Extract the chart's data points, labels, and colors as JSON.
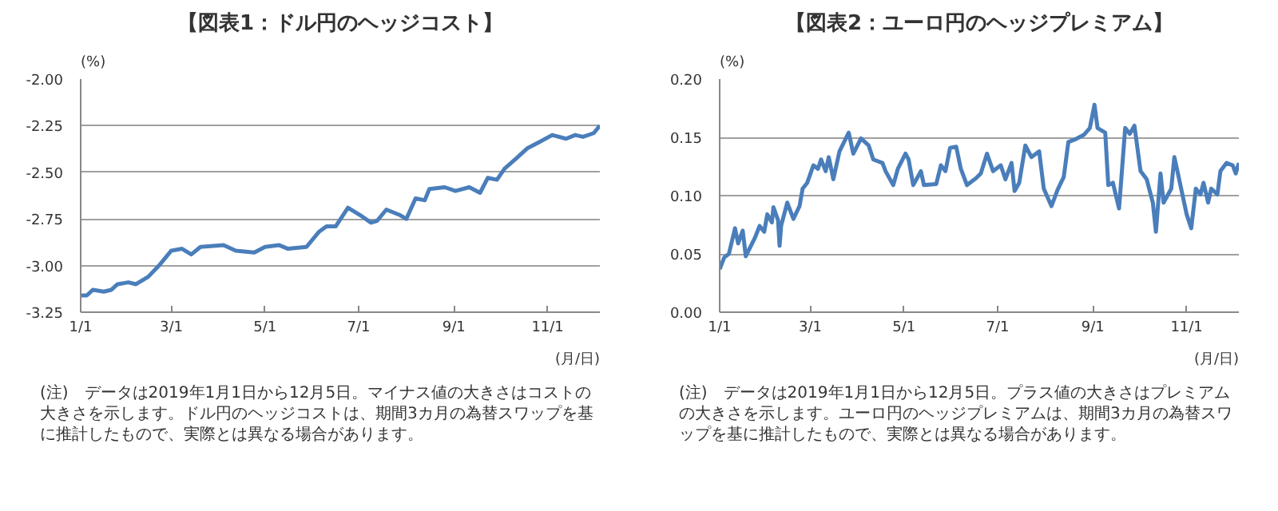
{
  "chart_data": [
    {
      "type": "line",
      "title": "【図表1：ドル円のヘッジコスト】",
      "ylabel": "(%)",
      "xlabel": "(月/日)",
      "x": [
        "2019-01-01",
        "2019-01-05",
        "2019-01-09",
        "2019-01-16",
        "2019-01-21",
        "2019-01-25",
        "2019-02-01",
        "2019-02-06",
        "2019-02-14",
        "2019-02-21",
        "2019-03-01",
        "2019-03-08",
        "2019-03-14",
        "2019-03-20",
        "2019-04-04",
        "2019-04-12",
        "2019-04-24",
        "2019-05-01",
        "2019-05-10",
        "2019-05-16",
        "2019-05-28",
        "2019-06-05",
        "2019-06-10",
        "2019-06-16",
        "2019-06-24",
        "2019-07-02",
        "2019-07-09",
        "2019-07-13",
        "2019-07-19",
        "2019-07-28",
        "2019-08-01",
        "2019-08-07",
        "2019-08-13",
        "2019-08-16",
        "2019-08-26",
        "2019-09-02",
        "2019-09-11",
        "2019-09-18",
        "2019-09-23",
        "2019-09-29",
        "2019-10-04",
        "2019-10-11",
        "2019-10-19",
        "2019-10-26",
        "2019-11-04",
        "2019-11-13",
        "2019-11-19",
        "2019-11-24",
        "2019-12-01",
        "2019-12-05"
      ],
      "series": [
        {
          "color": "#4a7ebb",
          "values": [
            -3.16,
            -3.16,
            -3.13,
            -3.14,
            -3.13,
            -3.1,
            -3.09,
            -3.1,
            -3.06,
            -3.0,
            -2.92,
            -2.91,
            -2.94,
            -2.9,
            -2.89,
            -2.92,
            -2.93,
            -2.9,
            -2.89,
            -2.91,
            -2.9,
            -2.82,
            -2.79,
            -2.79,
            -2.69,
            -2.73,
            -2.77,
            -2.76,
            -2.7,
            -2.73,
            -2.75,
            -2.64,
            -2.65,
            -2.59,
            -2.58,
            -2.6,
            -2.58,
            -2.61,
            -2.53,
            -2.54,
            -2.48,
            -2.43,
            -2.37,
            -2.34,
            -2.3,
            -2.32,
            -2.3,
            -2.31,
            -2.29,
            -2.25
          ]
        }
      ],
      "xlim": [
        "2019-01-01",
        "2019-12-05"
      ],
      "xticks": [
        {
          "value": "2019-01-01",
          "label": "1/1"
        },
        {
          "value": "2019-03-01",
          "label": "3/1"
        },
        {
          "value": "2019-05-01",
          "label": "5/1"
        },
        {
          "value": "2019-07-01",
          "label": "7/1"
        },
        {
          "value": "2019-09-01",
          "label": "9/1"
        },
        {
          "value": "2019-11-01",
          "label": "11/1"
        }
      ],
      "ylim": [
        -3.25,
        -2.0
      ],
      "yticks": [
        {
          "value": -3.25,
          "label": "-3.25"
        },
        {
          "value": -3.0,
          "label": "-3.00"
        },
        {
          "value": -2.75,
          "label": "-2.75"
        },
        {
          "value": -2.5,
          "label": "-2.50"
        },
        {
          "value": -2.25,
          "label": "-2.25"
        },
        {
          "value": -2.0,
          "label": "-2.00"
        }
      ],
      "grid": "y",
      "marker": "none",
      "line_style": "solid",
      "annotations": [
        "(注)　データは2019年1月1日から12月5日。マイナス値の大きさはコストの大きさを示します。ドル円のヘッジコストは、期間3カ月の為替スワップを基に推計したもので、実際とは異なる場合があります。"
      ]
    },
    {
      "type": "line",
      "title": "【図表2：ユーロ円のヘッジプレミアム】",
      "ylabel": "(%)",
      "xlabel": "(月/日)",
      "x": [
        "2019-01-01",
        "2019-01-04",
        "2019-01-07",
        "2019-01-11",
        "2019-01-13",
        "2019-01-16",
        "2019-01-18",
        "2019-01-24",
        "2019-01-27",
        "2019-01-30",
        "2019-02-01",
        "2019-02-04",
        "2019-02-05",
        "2019-02-08",
        "2019-02-09",
        "2019-02-10",
        "2019-02-14",
        "2019-02-18",
        "2019-02-22",
        "2019-02-24",
        "2019-02-27",
        "2019-03-03",
        "2019-03-06",
        "2019-03-08",
        "2019-03-11",
        "2019-03-13",
        "2019-03-16",
        "2019-03-20",
        "2019-03-26",
        "2019-03-29",
        "2019-04-03",
        "2019-04-08",
        "2019-04-11",
        "2019-04-17",
        "2019-04-19",
        "2019-04-24",
        "2019-04-27",
        "2019-05-02",
        "2019-05-04",
        "2019-05-07",
        "2019-05-12",
        "2019-05-14",
        "2019-05-22",
        "2019-05-25",
        "2019-05-28",
        "2019-05-31",
        "2019-06-04",
        "2019-06-07",
        "2019-06-11",
        "2019-06-17",
        "2019-06-20",
        "2019-06-24",
        "2019-06-28",
        "2019-07-03",
        "2019-07-06",
        "2019-07-10",
        "2019-07-12",
        "2019-07-15",
        "2019-07-19",
        "2019-07-23",
        "2019-07-28",
        "2019-07-31",
        "2019-08-05",
        "2019-08-09",
        "2019-08-13",
        "2019-08-16",
        "2019-08-20",
        "2019-08-26",
        "2019-08-30",
        "2019-09-02",
        "2019-09-04",
        "2019-09-09",
        "2019-09-11",
        "2019-09-14",
        "2019-09-18",
        "2019-09-22",
        "2019-09-25",
        "2019-09-28",
        "2019-10-02",
        "2019-10-06",
        "2019-10-10",
        "2019-10-12",
        "2019-10-15",
        "2019-10-17",
        "2019-10-22",
        "2019-10-24",
        "2019-10-26",
        "2019-11-01",
        "2019-11-04",
        "2019-11-07",
        "2019-11-10",
        "2019-11-12",
        "2019-11-15",
        "2019-11-17",
        "2019-11-21",
        "2019-11-23",
        "2019-11-27",
        "2019-12-01",
        "2019-12-03",
        "2019-12-05"
      ],
      "series": [
        {
          "color": "#4a7ebb",
          "values": [
            0.037,
            0.047,
            0.05,
            0.072,
            0.059,
            0.07,
            0.048,
            0.064,
            0.074,
            0.069,
            0.084,
            0.077,
            0.09,
            0.079,
            0.057,
            0.074,
            0.094,
            0.08,
            0.091,
            0.106,
            0.111,
            0.126,
            0.123,
            0.131,
            0.121,
            0.133,
            0.114,
            0.138,
            0.154,
            0.136,
            0.149,
            0.143,
            0.131,
            0.128,
            0.121,
            0.109,
            0.123,
            0.136,
            0.131,
            0.109,
            0.121,
            0.109,
            0.11,
            0.126,
            0.121,
            0.141,
            0.142,
            0.123,
            0.109,
            0.115,
            0.119,
            0.136,
            0.121,
            0.126,
            0.114,
            0.128,
            0.104,
            0.111,
            0.143,
            0.133,
            0.138,
            0.106,
            0.091,
            0.105,
            0.116,
            0.146,
            0.148,
            0.152,
            0.158,
            0.178,
            0.158,
            0.154,
            0.109,
            0.111,
            0.089,
            0.158,
            0.153,
            0.16,
            0.121,
            0.114,
            0.094,
            0.069,
            0.119,
            0.094,
            0.106,
            0.133,
            0.121,
            0.084,
            0.072,
            0.106,
            0.101,
            0.111,
            0.094,
            0.106,
            0.101,
            0.121,
            0.128,
            0.126,
            0.119,
            0.128
          ]
        }
      ],
      "xlim": [
        "2019-01-01",
        "2019-12-05"
      ],
      "xticks": [
        {
          "value": "2019-01-01",
          "label": "1/1"
        },
        {
          "value": "2019-03-01",
          "label": "3/1"
        },
        {
          "value": "2019-05-01",
          "label": "5/1"
        },
        {
          "value": "2019-07-01",
          "label": "7/1"
        },
        {
          "value": "2019-09-01",
          "label": "9/1"
        },
        {
          "value": "2019-11-01",
          "label": "11/1"
        }
      ],
      "ylim": [
        0.0,
        0.2
      ],
      "yticks": [
        {
          "value": 0.0,
          "label": "0.00"
        },
        {
          "value": 0.05,
          "label": "0.05"
        },
        {
          "value": 0.1,
          "label": "0.10"
        },
        {
          "value": 0.15,
          "label": "0.15"
        },
        {
          "value": 0.2,
          "label": "0.20"
        }
      ],
      "grid": "y",
      "marker": "none",
      "line_style": "solid",
      "annotations": [
        "(注)　データは2019年1月1日から12月5日。プラス値の大きさはプレミアムの大きさを示します。ユーロ円のヘッジプレミアムは、期間3カ月の為替スワップを基に推計したもので、実際とは異なる場合があります。"
      ]
    }
  ]
}
